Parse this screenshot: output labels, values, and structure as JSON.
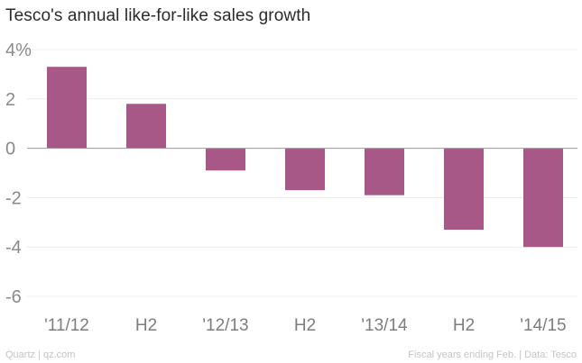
{
  "header": {
    "title": "Tesco's annual like-for-like sales growth"
  },
  "footer": {
    "credit": "Quartz | qz.com",
    "note": "Fiscal years ending Feb. | Data: Tesco"
  },
  "colors": {
    "bar": "#a85887"
  },
  "chart_data": {
    "type": "bar",
    "title": "Tesco's annual like-for-like sales growth",
    "categories": [
      "'11/12",
      "H2",
      "'12/13",
      "H2",
      "'13/14",
      "H2",
      "'14/15"
    ],
    "values": [
      3.3,
      1.8,
      -0.9,
      -1.7,
      -1.9,
      -3.3,
      -4.0
    ],
    "unit": "%",
    "ylim": [
      -6,
      4
    ],
    "yticks": [
      4,
      2,
      0,
      -2,
      -4,
      -6
    ],
    "ytick_labels": [
      "4%",
      "2",
      "0",
      "-2",
      "-4",
      "-6"
    ],
    "grid": true,
    "xlabel": "",
    "ylabel": ""
  }
}
